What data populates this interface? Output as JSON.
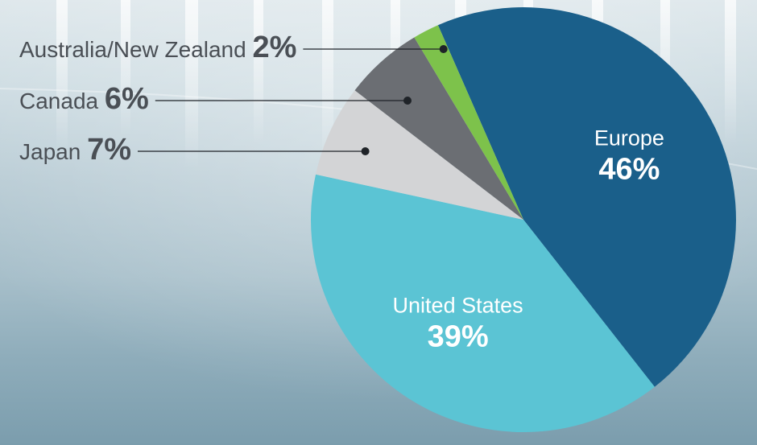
{
  "chart_data": {
    "type": "pie",
    "title": "",
    "slices": [
      {
        "label": "Europe",
        "value": 46,
        "display": "46%",
        "color": "#1a5f8a",
        "label_style": "inside"
      },
      {
        "label": "United States",
        "value": 39,
        "display": "39%",
        "color": "#5bc4d4",
        "label_style": "inside"
      },
      {
        "label": "Japan",
        "value": 7,
        "display": "7%",
        "color": "#d3d4d6",
        "label_style": "callout"
      },
      {
        "label": "Canada",
        "value": 6,
        "display": "6%",
        "color": "#6b6e73",
        "label_style": "callout"
      },
      {
        "label": "Australia/New Zealand",
        "value": 2,
        "display": "2%",
        "color": "#7dc24b",
        "label_style": "callout"
      }
    ],
    "legend": "none"
  }
}
